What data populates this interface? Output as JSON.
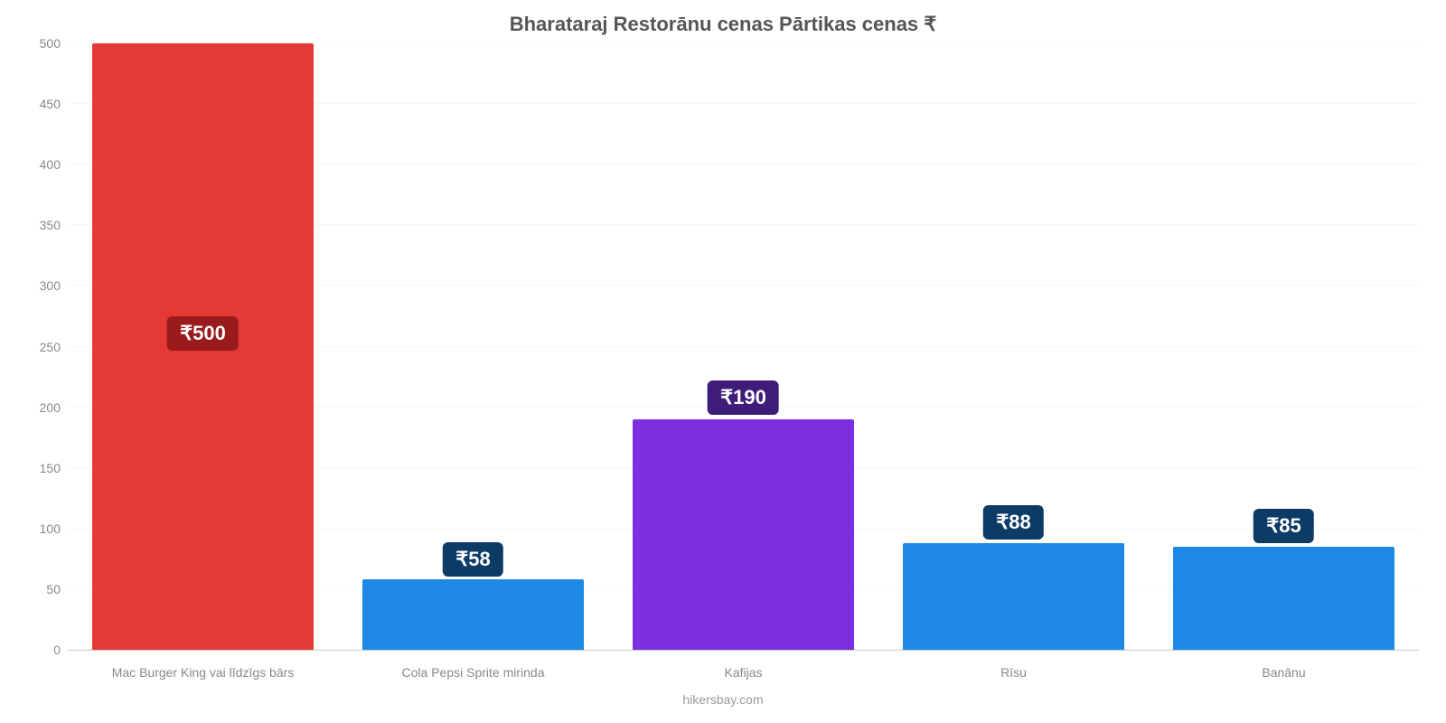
{
  "chart": {
    "type": "bar",
    "title": "Bharataraj Restorānu cenas Pārtikas cenas ₹",
    "title_fontsize": 22,
    "title_color": "#555555",
    "background_color": "#ffffff",
    "grid_color": "#f7f7f7",
    "axis_line_color": "#d0d0d0",
    "tick_label_color": "#888888",
    "tick_label_fontsize": 14,
    "ylim": [
      0,
      500
    ],
    "ytick_step": 50,
    "yticks": [
      0,
      50,
      100,
      150,
      200,
      250,
      300,
      350,
      400,
      450,
      500
    ],
    "bar_width": 0.82,
    "categories": [
      "Mac Burger King vai līdzīgs bārs",
      "Cola Pepsi Sprite mirinda",
      "Kafijas",
      "Rīsu",
      "Banānu"
    ],
    "values": [
      500,
      58,
      190,
      88,
      85
    ],
    "value_labels": [
      "₹500",
      "₹58",
      "₹190",
      "₹88",
      "₹85"
    ],
    "bar_colors": [
      "#e53935",
      "#1e88e5",
      "#7c2fe0",
      "#1e88e5",
      "#1e88e5"
    ],
    "badge_colors": [
      "#991b1b",
      "#0c3b66",
      "#3f1b7a",
      "#0c3b66",
      "#0c3b66"
    ],
    "badge_text_color": "#ffffff",
    "badge_fontsize": 22,
    "badge_offsets_pct": [
      45,
      -8,
      -12,
      -10,
      -10
    ],
    "attribution": "hikersbay.com",
    "attribution_color": "#999999"
  }
}
